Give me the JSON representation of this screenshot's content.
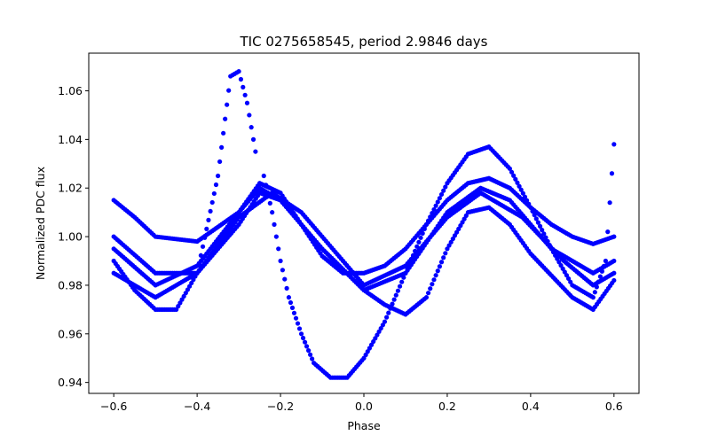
{
  "chart_data": {
    "type": "scatter",
    "title": "TIC 0275658545, period 2.9846 days",
    "xlabel": "Phase",
    "ylabel": "Normalized PDC flux",
    "xlim": [
      -0.66,
      0.66
    ],
    "ylim": [
      0.9355,
      1.0755
    ],
    "xticks": [
      -0.6,
      -0.4,
      -0.2,
      0.0,
      0.2,
      0.4,
      0.6
    ],
    "xtick_labels": [
      "−0.6",
      "−0.4",
      "−0.2",
      "0.0",
      "0.2",
      "0.4",
      "0.6"
    ],
    "yticks": [
      0.94,
      0.96,
      0.98,
      1.0,
      1.02,
      1.04,
      1.06
    ],
    "ytick_labels": [
      "0.94",
      "0.96",
      "0.98",
      "1.00",
      "1.02",
      "1.04",
      "1.06"
    ],
    "grid": false,
    "marker_color": "#0000ff",
    "series": [
      {
        "values": [
          [
            -0.6,
            0.99
          ],
          [
            -0.55,
            0.978
          ],
          [
            -0.5,
            0.97
          ],
          [
            -0.45,
            0.97
          ],
          [
            -0.4,
            0.985
          ],
          [
            -0.35,
            1.025
          ],
          [
            -0.32,
            1.066
          ],
          [
            -0.3,
            1.068
          ],
          [
            -0.28,
            1.055
          ],
          [
            -0.26,
            1.035
          ]
        ]
      },
      {
        "values": [
          [
            -0.24,
            1.025
          ],
          [
            -0.22,
            1.01
          ],
          [
            -0.2,
            0.99
          ],
          [
            -0.18,
            0.975
          ],
          [
            -0.15,
            0.96
          ],
          [
            -0.12,
            0.948
          ],
          [
            -0.08,
            0.942
          ],
          [
            -0.04,
            0.942
          ],
          [
            0.0,
            0.95
          ],
          [
            0.05,
            0.965
          ],
          [
            0.1,
            0.985
          ],
          [
            0.15,
            1.005
          ],
          [
            0.2,
            1.022
          ],
          [
            0.25,
            1.034
          ],
          [
            0.3,
            1.037
          ],
          [
            0.35,
            1.028
          ],
          [
            0.4,
            1.012
          ],
          [
            0.45,
            0.995
          ],
          [
            0.5,
            0.98
          ],
          [
            0.55,
            0.975
          ],
          [
            0.58,
            0.99
          ],
          [
            0.6,
            1.038
          ]
        ]
      },
      {
        "values": [
          [
            -0.6,
            1.015
          ],
          [
            -0.55,
            1.008
          ],
          [
            -0.5,
            1.0
          ],
          [
            -0.4,
            0.998
          ],
          [
            -0.3,
            1.01
          ],
          [
            -0.25,
            1.022
          ],
          [
            -0.2,
            1.018
          ],
          [
            -0.15,
            1.005
          ],
          [
            -0.1,
            0.992
          ],
          [
            -0.05,
            0.985
          ],
          [
            0.0,
            0.985
          ],
          [
            0.05,
            0.988
          ],
          [
            0.1,
            0.995
          ],
          [
            0.15,
            1.005
          ],
          [
            0.2,
            1.015
          ],
          [
            0.25,
            1.022
          ],
          [
            0.3,
            1.024
          ],
          [
            0.35,
            1.02
          ],
          [
            0.4,
            1.012
          ],
          [
            0.45,
            1.005
          ],
          [
            0.5,
            1.0
          ],
          [
            0.55,
            0.997
          ],
          [
            0.6,
            1.0
          ]
        ]
      },
      {
        "values": [
          [
            -0.6,
            1.0
          ],
          [
            -0.5,
            0.985
          ],
          [
            -0.4,
            0.985
          ],
          [
            -0.3,
            1.005
          ],
          [
            -0.25,
            1.018
          ],
          [
            -0.2,
            1.015
          ],
          [
            -0.1,
            0.995
          ],
          [
            0.0,
            0.978
          ],
          [
            0.05,
            0.972
          ],
          [
            0.1,
            0.968
          ],
          [
            0.15,
            0.975
          ],
          [
            0.2,
            0.995
          ],
          [
            0.25,
            1.01
          ],
          [
            0.3,
            1.012
          ],
          [
            0.35,
            1.005
          ],
          [
            0.4,
            0.993
          ],
          [
            0.5,
            0.975
          ],
          [
            0.55,
            0.97
          ],
          [
            0.6,
            0.982
          ]
        ]
      },
      {
        "values": [
          [
            -0.6,
            0.995
          ],
          [
            -0.5,
            0.98
          ],
          [
            -0.4,
            0.988
          ],
          [
            -0.3,
            1.01
          ],
          [
            -0.25,
            1.02
          ],
          [
            -0.2,
            1.015
          ],
          [
            -0.1,
            0.995
          ],
          [
            0.0,
            0.978
          ],
          [
            0.1,
            0.985
          ],
          [
            0.2,
            1.01
          ],
          [
            0.28,
            1.02
          ],
          [
            0.35,
            1.015
          ],
          [
            0.45,
            0.995
          ],
          [
            0.55,
            0.985
          ],
          [
            0.6,
            0.99
          ]
        ]
      },
      {
        "values": [
          [
            -0.6,
            0.985
          ],
          [
            -0.5,
            0.975
          ],
          [
            -0.4,
            0.985
          ],
          [
            -0.3,
            1.008
          ],
          [
            -0.22,
            1.018
          ],
          [
            -0.15,
            1.01
          ],
          [
            -0.05,
            0.99
          ],
          [
            0.0,
            0.98
          ],
          [
            0.1,
            0.988
          ],
          [
            0.2,
            1.008
          ],
          [
            0.28,
            1.018
          ],
          [
            0.38,
            1.008
          ],
          [
            0.48,
            0.99
          ],
          [
            0.55,
            0.98
          ],
          [
            0.6,
            0.985
          ]
        ]
      }
    ]
  }
}
